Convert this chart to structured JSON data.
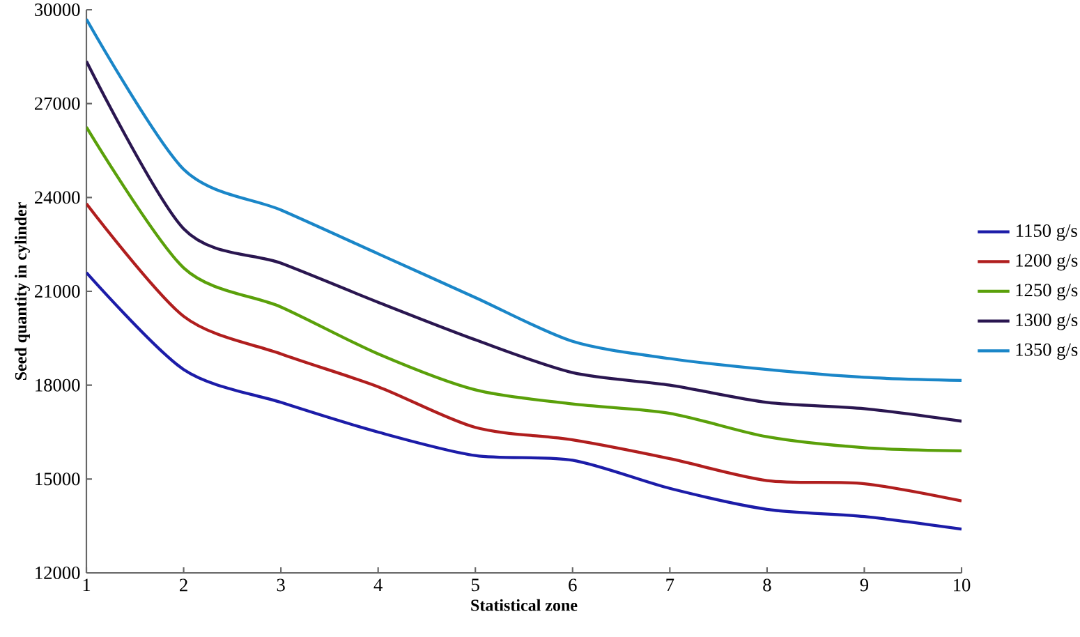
{
  "chart_data": {
    "type": "line",
    "xlabel": "Statistical zone",
    "ylabel": "Seed quantity in cylinder",
    "x": [
      1,
      2,
      3,
      4,
      5,
      6,
      7,
      8,
      9,
      10
    ],
    "xlim": [
      1,
      10
    ],
    "xticks": [
      1,
      2,
      3,
      4,
      5,
      6,
      7,
      8,
      9,
      10
    ],
    "ylim": [
      12000,
      30000
    ],
    "yticks": [
      12000,
      15000,
      18000,
      21000,
      24000,
      27000,
      30000
    ],
    "series": [
      {
        "name": "1150 g/s",
        "color": "#1c1ca8",
        "values": [
          21600,
          18500,
          17450,
          16500,
          15750,
          15600,
          14700,
          14030,
          13800,
          13400
        ]
      },
      {
        "name": "1200 g/s",
        "color": "#b01e1e",
        "values": [
          23800,
          20200,
          19000,
          17950,
          16650,
          16250,
          15650,
          14950,
          14850,
          14300
        ]
      },
      {
        "name": "1250 g/s",
        "color": "#5aa00a",
        "values": [
          26250,
          21750,
          20500,
          19000,
          17850,
          17400,
          17100,
          16350,
          16000,
          15900
        ]
      },
      {
        "name": "1300 g/s",
        "color": "#2a1650",
        "values": [
          28350,
          23000,
          21900,
          20650,
          19450,
          18400,
          18000,
          17450,
          17250,
          16850
        ]
      },
      {
        "name": "1350 g/s",
        "color": "#1a86c8",
        "values": [
          29700,
          24900,
          23600,
          22200,
          20800,
          19400,
          18850,
          18500,
          18250,
          18150
        ]
      }
    ],
    "legend": "right",
    "grid": false,
    "marker": "none",
    "line_style": "solid"
  }
}
